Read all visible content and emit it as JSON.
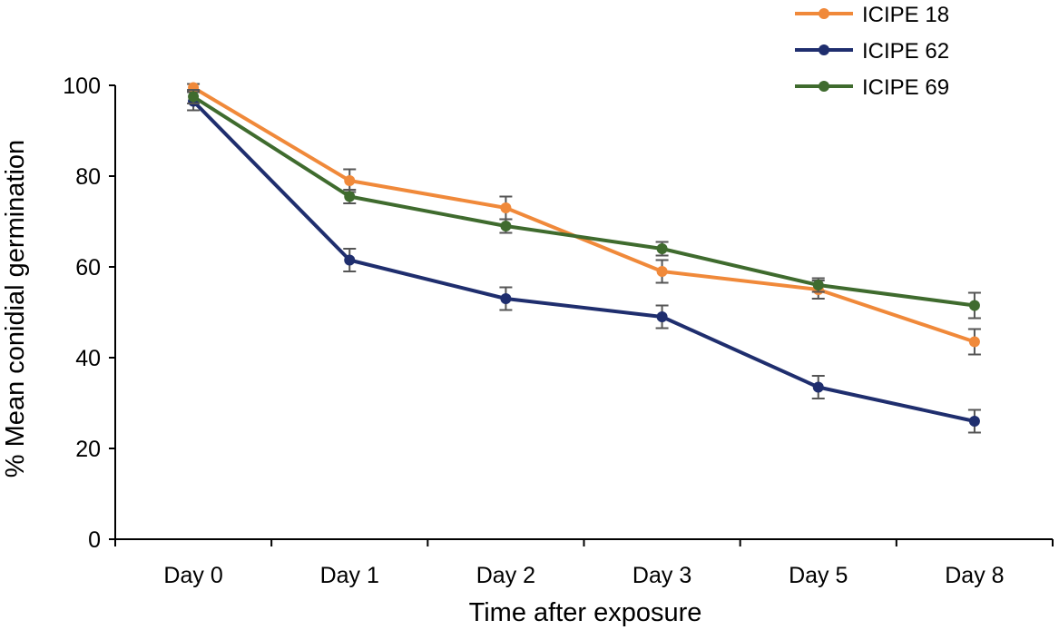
{
  "chart_data": {
    "type": "line",
    "title": "",
    "xlabel": "Time after exposure",
    "ylabel": "% Mean conidial germination",
    "categories": [
      "Day 0",
      "Day 1",
      "Day 2",
      "Day 3",
      "Day 5",
      "Day 8"
    ],
    "ylim": [
      0,
      100
    ],
    "yticks": [
      0,
      20,
      40,
      60,
      80,
      100
    ],
    "grid": false,
    "legend_position": "top-right",
    "error_bars": true,
    "series": [
      {
        "name": "ICIPE 18",
        "color": "#F0893A",
        "values": [
          99.5,
          79,
          73,
          59,
          55,
          43.5
        ],
        "errors": [
          0.8,
          2.5,
          2.5,
          2.5,
          2.0,
          2.8
        ]
      },
      {
        "name": "ICIPE 62",
        "color": "#1F2E6E",
        "values": [
          96.5,
          61.5,
          53,
          49,
          33.5,
          26
        ],
        "errors": [
          2.0,
          2.5,
          2.5,
          2.5,
          2.5,
          2.5
        ]
      },
      {
        "name": "ICIPE 69",
        "color": "#3F6B2E",
        "values": [
          97.5,
          75.5,
          69,
          64,
          56,
          51.5
        ],
        "errors": [
          1.5,
          1.5,
          1.5,
          1.5,
          1.5,
          2.8
        ]
      }
    ]
  }
}
